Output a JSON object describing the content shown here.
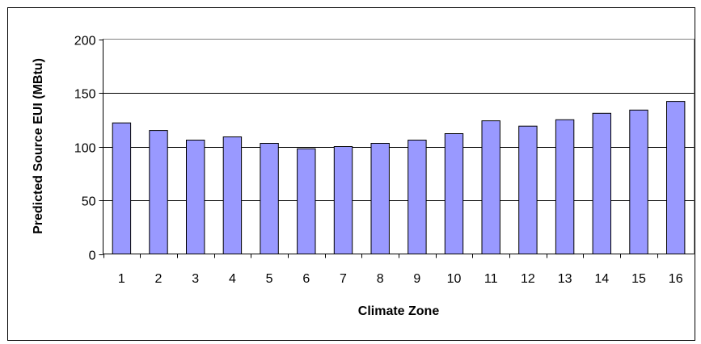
{
  "chart_data": {
    "type": "bar",
    "categories": [
      "1",
      "2",
      "3",
      "4",
      "5",
      "6",
      "7",
      "8",
      "9",
      "10",
      "11",
      "12",
      "13",
      "14",
      "15",
      "16"
    ],
    "values": [
      122,
      115,
      106,
      109,
      103,
      98,
      100,
      103,
      106,
      112,
      124,
      119,
      125,
      131,
      134,
      142
    ],
    "xlabel": "Climate Zone",
    "ylabel": "Predicted Source EUI (MBtu)",
    "ylim": [
      0,
      200
    ],
    "yticks": [
      "0",
      "50",
      "100",
      "150",
      "200"
    ],
    "grid": true,
    "legend": "none",
    "colors": {
      "bar_fill": "#9999ff",
      "bar_stroke": "#000000",
      "gridline": "#000000",
      "plot_border": "#808080"
    }
  }
}
